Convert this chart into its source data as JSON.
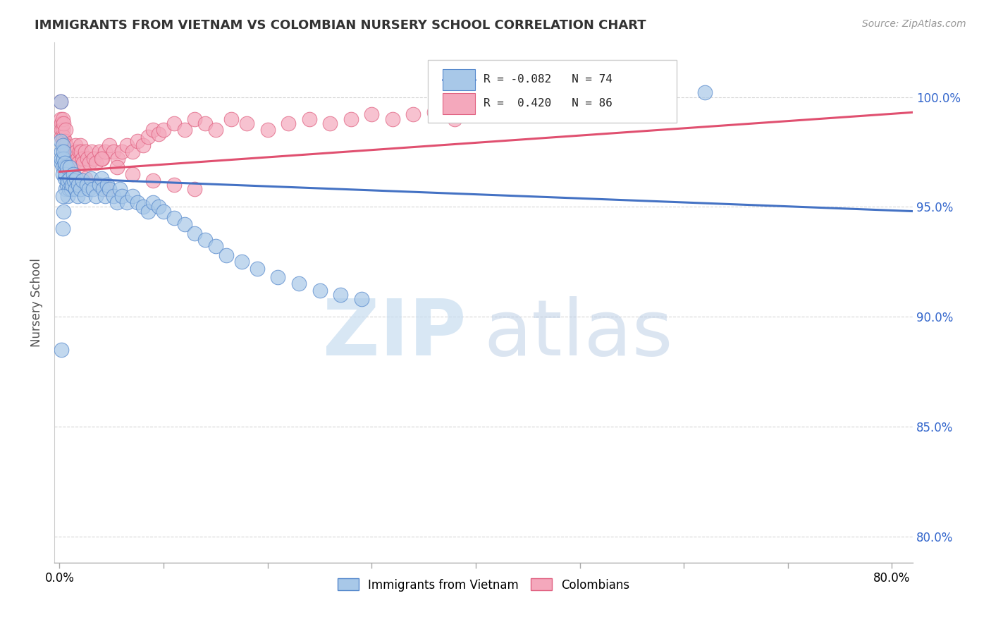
{
  "title": "IMMIGRANTS FROM VIETNAM VS COLOMBIAN NURSERY SCHOOL CORRELATION CHART",
  "source": "Source: ZipAtlas.com",
  "ylabel": "Nursery School",
  "x_ticks": [
    0.0,
    0.1,
    0.2,
    0.3,
    0.4,
    0.5,
    0.6,
    0.7,
    0.8
  ],
  "x_tick_labels": [
    "0.0%",
    "",
    "",
    "",
    "",
    "",
    "",
    "",
    "80.0%"
  ],
  "y_ticks": [
    0.8,
    0.85,
    0.9,
    0.95,
    1.0
  ],
  "y_tick_labels": [
    "80.0%",
    "85.0%",
    "90.0%",
    "95.0%",
    "100.0%"
  ],
  "xlim": [
    -0.005,
    0.82
  ],
  "ylim": [
    0.788,
    1.025
  ],
  "blue_color": "#a8c8e8",
  "pink_color": "#f4a8bc",
  "blue_edge_color": "#5588cc",
  "pink_edge_color": "#e06080",
  "blue_line_color": "#4472c4",
  "pink_line_color": "#e05070",
  "blue_line_x": [
    0.0,
    0.82
  ],
  "blue_line_y": [
    0.963,
    0.948
  ],
  "pink_line_x": [
    0.0,
    0.82
  ],
  "pink_line_y": [
    0.966,
    0.993
  ],
  "blue_scatter_x": [
    0.001,
    0.001,
    0.002,
    0.002,
    0.002,
    0.003,
    0.003,
    0.003,
    0.004,
    0.004,
    0.005,
    0.005,
    0.005,
    0.006,
    0.006,
    0.007,
    0.007,
    0.008,
    0.008,
    0.009,
    0.01,
    0.01,
    0.011,
    0.012,
    0.013,
    0.014,
    0.015,
    0.016,
    0.017,
    0.018,
    0.02,
    0.022,
    0.024,
    0.026,
    0.028,
    0.03,
    0.032,
    0.035,
    0.038,
    0.04,
    0.042,
    0.044,
    0.046,
    0.048,
    0.052,
    0.055,
    0.058,
    0.06,
    0.065,
    0.07,
    0.075,
    0.08,
    0.085,
    0.09,
    0.095,
    0.1,
    0.11,
    0.12,
    0.13,
    0.14,
    0.15,
    0.16,
    0.175,
    0.19,
    0.21,
    0.23,
    0.25,
    0.27,
    0.29,
    0.62,
    0.003,
    0.004,
    0.003,
    0.002
  ],
  "blue_scatter_y": [
    0.998,
    0.98,
    0.975,
    0.97,
    0.972,
    0.968,
    0.965,
    0.978,
    0.972,
    0.975,
    0.968,
    0.963,
    0.97,
    0.958,
    0.965,
    0.96,
    0.968,
    0.955,
    0.962,
    0.958,
    0.968,
    0.963,
    0.958,
    0.96,
    0.965,
    0.962,
    0.958,
    0.963,
    0.955,
    0.96,
    0.958,
    0.962,
    0.955,
    0.96,
    0.958,
    0.963,
    0.958,
    0.955,
    0.96,
    0.963,
    0.958,
    0.955,
    0.96,
    0.958,
    0.955,
    0.952,
    0.958,
    0.955,
    0.952,
    0.955,
    0.952,
    0.95,
    0.948,
    0.952,
    0.95,
    0.948,
    0.945,
    0.942,
    0.938,
    0.935,
    0.932,
    0.928,
    0.925,
    0.922,
    0.918,
    0.915,
    0.912,
    0.91,
    0.908,
    1.002,
    0.955,
    0.948,
    0.94,
    0.885
  ],
  "pink_scatter_x": [
    0.001,
    0.001,
    0.002,
    0.002,
    0.002,
    0.003,
    0.003,
    0.003,
    0.004,
    0.004,
    0.004,
    0.005,
    0.005,
    0.006,
    0.006,
    0.006,
    0.007,
    0.007,
    0.008,
    0.008,
    0.009,
    0.009,
    0.01,
    0.01,
    0.011,
    0.012,
    0.013,
    0.014,
    0.015,
    0.016,
    0.017,
    0.018,
    0.019,
    0.02,
    0.021,
    0.022,
    0.023,
    0.025,
    0.027,
    0.029,
    0.031,
    0.033,
    0.035,
    0.038,
    0.041,
    0.044,
    0.048,
    0.052,
    0.056,
    0.06,
    0.065,
    0.07,
    0.075,
    0.08,
    0.085,
    0.09,
    0.095,
    0.1,
    0.11,
    0.12,
    0.13,
    0.14,
    0.15,
    0.165,
    0.18,
    0.2,
    0.22,
    0.24,
    0.26,
    0.28,
    0.3,
    0.32,
    0.34,
    0.36,
    0.38,
    0.04,
    0.055,
    0.07,
    0.09,
    0.11,
    0.13,
    0.015,
    0.025,
    0.035,
    0.045,
    0.005
  ],
  "pink_scatter_y": [
    0.998,
    0.99,
    0.988,
    0.985,
    0.982,
    0.985,
    0.98,
    0.99,
    0.982,
    0.978,
    0.988,
    0.975,
    0.98,
    0.972,
    0.978,
    0.985,
    0.97,
    0.975,
    0.968,
    0.973,
    0.965,
    0.97,
    0.968,
    0.972,
    0.965,
    0.97,
    0.968,
    0.972,
    0.978,
    0.975,
    0.972,
    0.97,
    0.975,
    0.978,
    0.975,
    0.972,
    0.97,
    0.975,
    0.972,
    0.97,
    0.975,
    0.972,
    0.97,
    0.975,
    0.972,
    0.975,
    0.978,
    0.975,
    0.972,
    0.975,
    0.978,
    0.975,
    0.98,
    0.978,
    0.982,
    0.985,
    0.983,
    0.985,
    0.988,
    0.985,
    0.99,
    0.988,
    0.985,
    0.99,
    0.988,
    0.985,
    0.988,
    0.99,
    0.988,
    0.99,
    0.992,
    0.99,
    0.992,
    0.993,
    0.99,
    0.972,
    0.968,
    0.965,
    0.962,
    0.96,
    0.958,
    0.96,
    0.963,
    0.96,
    0.958,
    0.968
  ]
}
